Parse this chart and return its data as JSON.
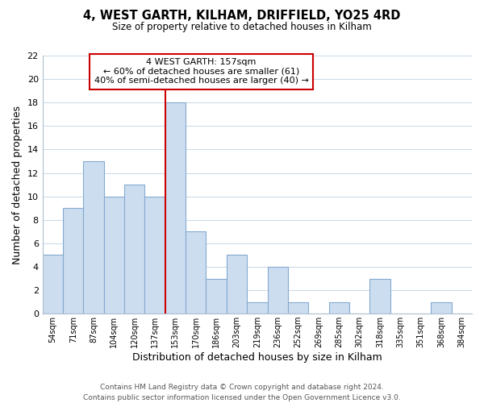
{
  "title": "4, WEST GARTH, KILHAM, DRIFFIELD, YO25 4RD",
  "subtitle": "Size of property relative to detached houses in Kilham",
  "xlabel": "Distribution of detached houses by size in Kilham",
  "ylabel": "Number of detached properties",
  "categories": [
    "54sqm",
    "71sqm",
    "87sqm",
    "104sqm",
    "120sqm",
    "137sqm",
    "153sqm",
    "170sqm",
    "186sqm",
    "203sqm",
    "219sqm",
    "236sqm",
    "252sqm",
    "269sqm",
    "285sqm",
    "302sqm",
    "318sqm",
    "335sqm",
    "351sqm",
    "368sqm",
    "384sqm"
  ],
  "values": [
    5,
    9,
    13,
    10,
    11,
    10,
    18,
    7,
    3,
    5,
    1,
    4,
    1,
    0,
    1,
    0,
    3,
    0,
    0,
    1,
    0
  ],
  "highlight_index": 6,
  "bar_color": "#ccddf0",
  "bar_edge_color": "#85aacf",
  "bar_width": 1.0,
  "ylim": [
    0,
    22
  ],
  "yticks": [
    0,
    2,
    4,
    6,
    8,
    10,
    12,
    14,
    16,
    18,
    20,
    22
  ],
  "annotation_title": "4 WEST GARTH: 157sqm",
  "annotation_line1": "← 60% of detached houses are smaller (61)",
  "annotation_line2": "40% of semi-detached houses are larger (40) →",
  "vline_index": 6,
  "vline_color": "#cc0000",
  "annotation_box_color": "#cc0000",
  "footer_line1": "Contains HM Land Registry data © Crown copyright and database right 2024.",
  "footer_line2": "Contains public sector information licensed under the Open Government Licence v3.0.",
  "background_color": "#ffffff",
  "grid_color": "#c8d8e8"
}
